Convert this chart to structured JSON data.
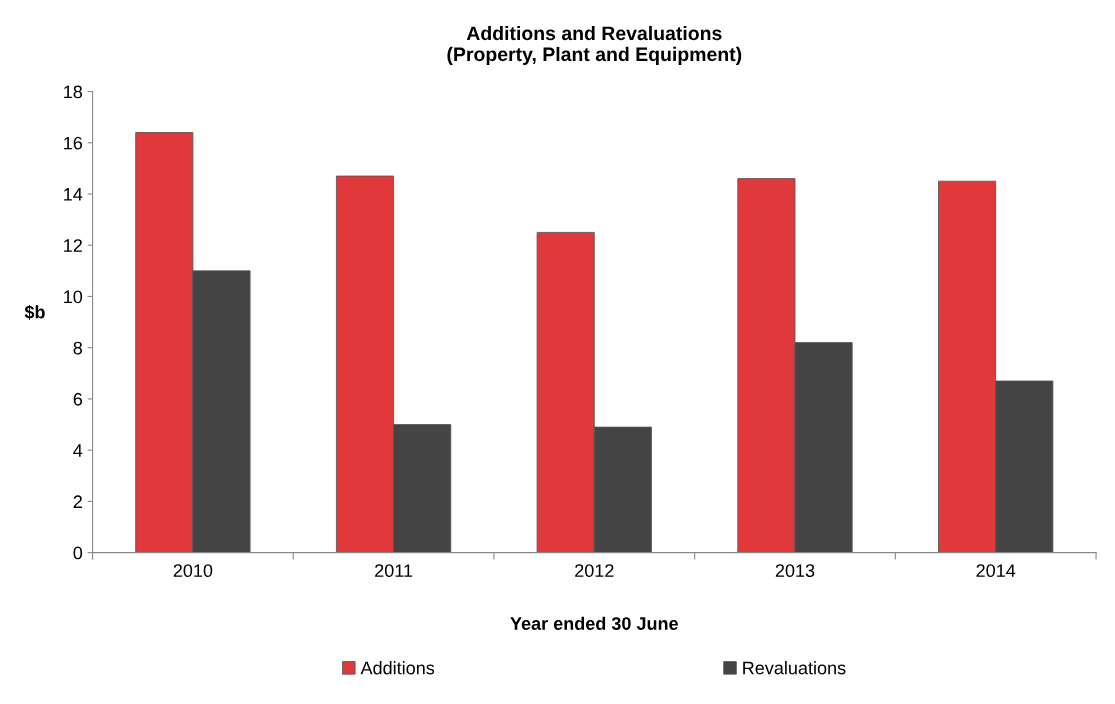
{
  "chart_data": {
    "type": "bar",
    "title": "Additions and Revaluations\n(Property, Plant and Equipment)",
    "xlabel": "Year ended 30 June",
    "ylabel": "$b",
    "categories": [
      "2010",
      "2011",
      "2012",
      "2013",
      "2014"
    ],
    "series": [
      {
        "name": "Additions",
        "color": "#e0383b",
        "values": [
          16.4,
          14.7,
          12.5,
          14.6,
          14.5
        ]
      },
      {
        "name": "Revaluations",
        "color": "#444444",
        "values": [
          11.0,
          5.0,
          4.9,
          8.2,
          6.7
        ]
      }
    ],
    "ylim": [
      0,
      18
    ],
    "yticks": [
      0,
      2,
      4,
      6,
      8,
      10,
      12,
      14,
      16,
      18
    ],
    "grid": false,
    "legend": "bottom"
  }
}
